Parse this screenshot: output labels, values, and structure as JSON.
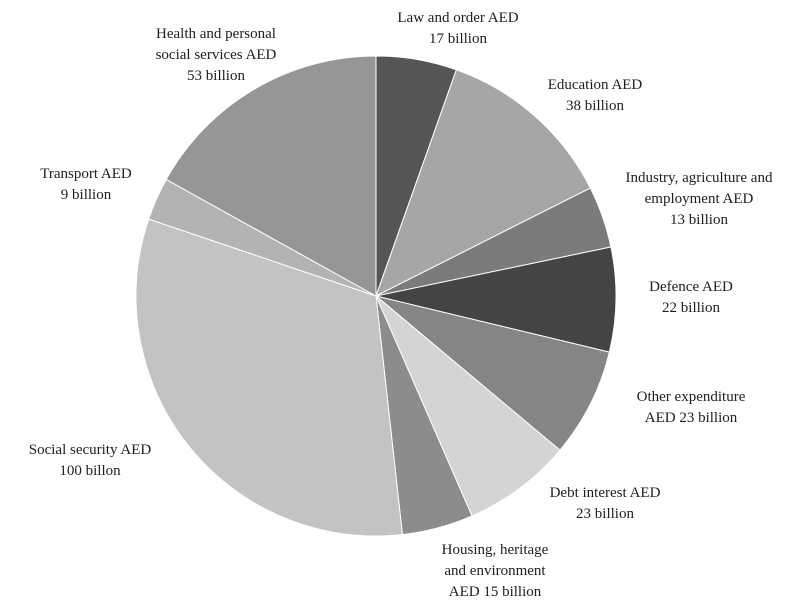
{
  "chart_data": {
    "type": "pie",
    "start_angle_deg": 0,
    "direction": "clockwise",
    "slices": [
      {
        "name": "Law and order",
        "value": 17,
        "color": "#555555",
        "label": [
          "Law and order AED",
          "17 billion"
        ]
      },
      {
        "name": "Education",
        "value": 38,
        "color": "#a6a6a6",
        "label": [
          "Education AED",
          "38 billion"
        ]
      },
      {
        "name": "Industry, agriculture and employment",
        "value": 13,
        "color": "#7b7b7b",
        "label": [
          "Industry, agriculture and",
          "employment AED",
          "13 billion"
        ]
      },
      {
        "name": "Defence",
        "value": 22,
        "color": "#444444",
        "label": [
          "Defence AED",
          "22 billion"
        ]
      },
      {
        "name": "Other expenditure",
        "value": 23,
        "color": "#858585",
        "label": [
          "Other expenditure",
          "AED 23 billion"
        ]
      },
      {
        "name": "Debt interest",
        "value": 23,
        "color": "#d4d4d4",
        "label": [
          "Debt interest AED",
          "23 billion"
        ]
      },
      {
        "name": "Housing, heritage and environment",
        "value": 15,
        "color": "#8c8c8c",
        "label": [
          "Housing, heritage",
          "and environment",
          "AED 15 billion"
        ]
      },
      {
        "name": "Social security",
        "value": 100,
        "color": "#c3c3c3",
        "label": [
          "Social security AED",
          "100 billon"
        ]
      },
      {
        "name": "Transport",
        "value": 9,
        "color": "#b3b3b3",
        "label": [
          "Transport AED",
          "9 billion"
        ]
      },
      {
        "name": "Health and personal social services",
        "value": 53,
        "color": "#969696",
        "label": [
          "Health and personal",
          "social services AED",
          "53 billion"
        ]
      }
    ]
  }
}
